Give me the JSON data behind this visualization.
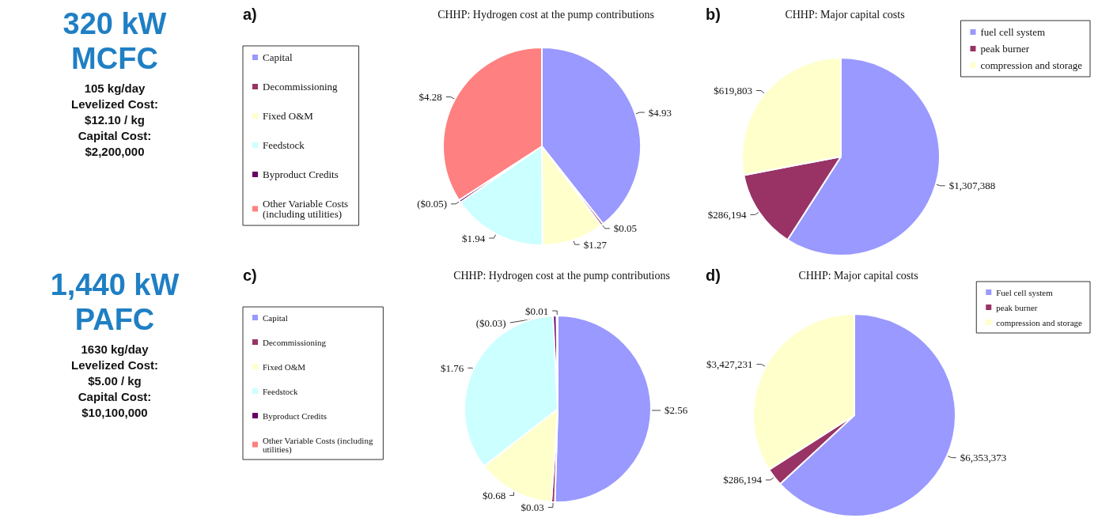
{
  "chart_data": [
    {
      "type": "other",
      "title": "320 kW MCFC",
      "annotations": [
        "105 kg/day",
        "Levelized Cost:",
        "$12.10 / kg",
        "Capital Cost:",
        "$2,200,000"
      ]
    },
    {
      "type": "pie",
      "title": "CHHP: Hydrogen cost at the pump contributions",
      "annotations": [
        "a)"
      ],
      "legend": "left",
      "categories": [
        "Capital",
        "Decommissioning",
        "Fixed O&M",
        "Feedstock",
        "Byproduct Credits",
        "Other Variable Costs (including utilities)"
      ],
      "values": [
        4.93,
        0.05,
        1.27,
        1.94,
        0.05,
        4.28
      ],
      "value_labels": [
        "$4.93",
        "$0.05",
        "$1.27",
        "$1.94",
        "($0.05)",
        "$4.28"
      ],
      "colors": [
        "#9999ff",
        "#993366",
        "#ffffcc",
        "#ccffff",
        "#660066",
        "#ff8080"
      ]
    },
    {
      "type": "pie",
      "title": "CHHP: Major capital costs",
      "annotations": [
        "b)"
      ],
      "legend": "top right",
      "categories": [
        "fuel cell system",
        "peak burner",
        "compression and storage"
      ],
      "values": [
        1307388,
        286194,
        619803
      ],
      "value_labels": [
        "$1,307,388",
        "$286,194",
        "$619,803"
      ],
      "colors": [
        "#9999ff",
        "#993366",
        "#ffffcc"
      ]
    },
    {
      "type": "other",
      "title": "1,440 kW PAFC",
      "annotations": [
        "1630 kg/day",
        "Levelized Cost:",
        "$5.00 / kg",
        "Capital Cost:",
        "$10,100,000"
      ]
    },
    {
      "type": "pie",
      "title": "CHHP: Hydrogen cost at the pump contributions",
      "annotations": [
        "c)"
      ],
      "legend": "left",
      "categories": [
        "Capital",
        "Decommissioning",
        "Fixed O&M",
        "Feedstock",
        "Byproduct Credits",
        "Other Variable Costs (including utilities)"
      ],
      "values": [
        2.56,
        0.03,
        0.68,
        1.76,
        0.03,
        0.01
      ],
      "value_labels": [
        "$2.56",
        "$0.03",
        "$0.68",
        "$1.76",
        "($0.03)",
        "$0.01"
      ],
      "colors": [
        "#9999ff",
        "#993366",
        "#ffffcc",
        "#ccffff",
        "#660066",
        "#ff8080"
      ]
    },
    {
      "type": "pie",
      "title": "CHHP: Major capital costs",
      "annotations": [
        "d)"
      ],
      "legend": "top right",
      "categories": [
        "Fuel cell system",
        "peak burner",
        "compression and storage"
      ],
      "values": [
        6353373,
        286194,
        3427231
      ],
      "value_labels": [
        "$6,353,373",
        "$286,194",
        "$3,427,231"
      ],
      "colors": [
        "#9999ff",
        "#993366",
        "#ffffcc"
      ]
    }
  ]
}
